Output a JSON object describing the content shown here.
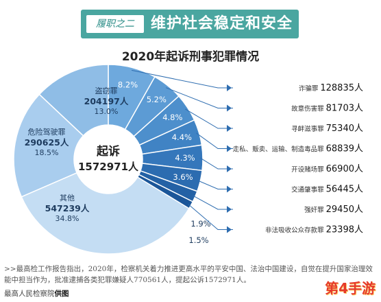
{
  "header": {
    "tag": "履职之二",
    "title": "维护社会稳定和安全"
  },
  "chart_data": {
    "type": "pie",
    "title": "2020年起诉刑事犯罪情况",
    "center": {
      "label": "起诉",
      "value": "1572971人"
    },
    "left_slices": [
      {
        "name": "盗窃罪",
        "value": "204197人",
        "percent": "13.0%",
        "share": 13.0,
        "color": "#8fbde6"
      },
      {
        "name": "危险驾驶罪",
        "value": "290625人",
        "percent": "18.5%",
        "share": 18.5,
        "color": "#a9cdee"
      },
      {
        "name": "其他",
        "value": "547239人",
        "percent": "34.8%",
        "share": 34.8,
        "color": "#c4ddf3"
      }
    ],
    "right_slices": [
      {
        "name": "诈骗罪",
        "value": "128835人",
        "percent": "8.2%",
        "share": 8.2,
        "color": "#6ea9dd"
      },
      {
        "name": "故意伤害罪",
        "value": "81703人",
        "percent": "5.2%",
        "share": 5.2,
        "color": "#5c9bd4"
      },
      {
        "name": "寻衅滋事罪",
        "value": "75340人",
        "percent": "4.8%",
        "share": 4.8,
        "color": "#4d8fcc"
      },
      {
        "name": "走私、贩卖、运输、制造毒品罪",
        "value": "68839人",
        "percent": "4.4%",
        "share": 4.4,
        "color": "#4083c4"
      },
      {
        "name": "开设赌场罪",
        "value": "66900人",
        "percent": "4.3%",
        "share": 4.3,
        "color": "#3577bb"
      },
      {
        "name": "交通肇事罪",
        "value": "56445人",
        "percent": "3.6%",
        "share": 3.6,
        "color": "#2c6cb0"
      },
      {
        "name": "强奸罪",
        "value": "29450人",
        "percent": "1.9%",
        "share": 1.9,
        "color": "#2361a5"
      },
      {
        "name": "非法吸收公众存款罪",
        "value": "23398人",
        "percent": "1.5%",
        "share": 1.5,
        "color": "#1b5699"
      }
    ],
    "legend_placement": "right"
  },
  "footer": {
    "text": ">>最高检工作报告指出，2020年，检察机关着力推进更高水平的平安中国、法治中国建设，自觉在提升国家治理效能中担当作为，批准逮捕各类犯罪嫌疑人770561人，提起公诉1572971人。",
    "source_prefix": "最高人民检察院",
    "source_suffix": "供图"
  },
  "watermark": "第4手游"
}
